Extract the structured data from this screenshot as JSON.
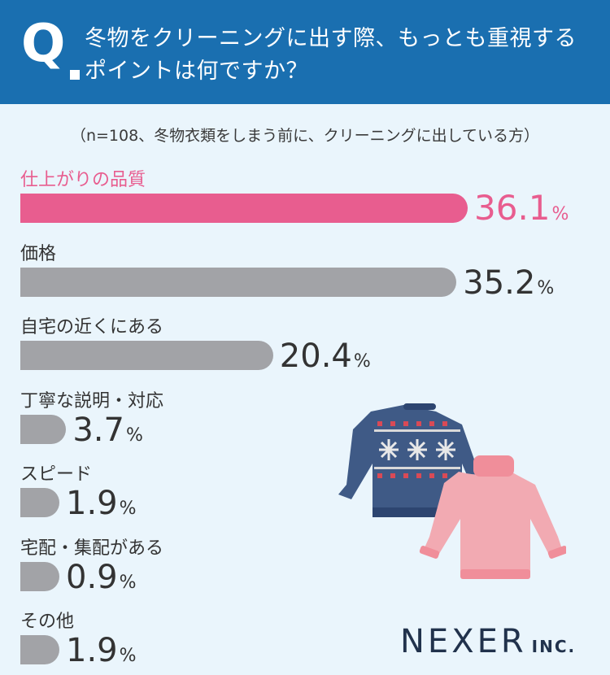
{
  "header": {
    "q_mark": "Q",
    "question": "冬物をクリーニングに出す際、もっとも重視するポイントは何ですか？"
  },
  "subtitle": "（n=108、冬物衣類をしまう前に、クリーニングに出している方）",
  "chart_data": {
    "type": "bar",
    "orientation": "horizontal",
    "categories": [
      "仕上がりの品質",
      "価格",
      "自宅の近くにある",
      "丁寧な説明・対応",
      "スピード",
      "宅配・集配がある",
      "その他"
    ],
    "values": [
      36.1,
      35.2,
      20.4,
      3.7,
      1.9,
      0.9,
      1.9
    ],
    "value_labels": [
      "36.1",
      "35.2",
      "20.4",
      "3.7",
      "1.9",
      "0.9",
      "1.9"
    ],
    "unit": "%",
    "highlight_index": 0,
    "colors": {
      "highlight": "#e85d8f",
      "default": "#a2a3a7"
    }
  },
  "brand": {
    "name": "NEXER",
    "suffix": "INC."
  },
  "colors": {
    "header_bg": "#1a6fb0",
    "page_bg": "#eaf5fc",
    "brand": "#21324c"
  },
  "illustration": {
    "icons": [
      "navy-sweater-icon",
      "pink-turtleneck-icon"
    ]
  }
}
